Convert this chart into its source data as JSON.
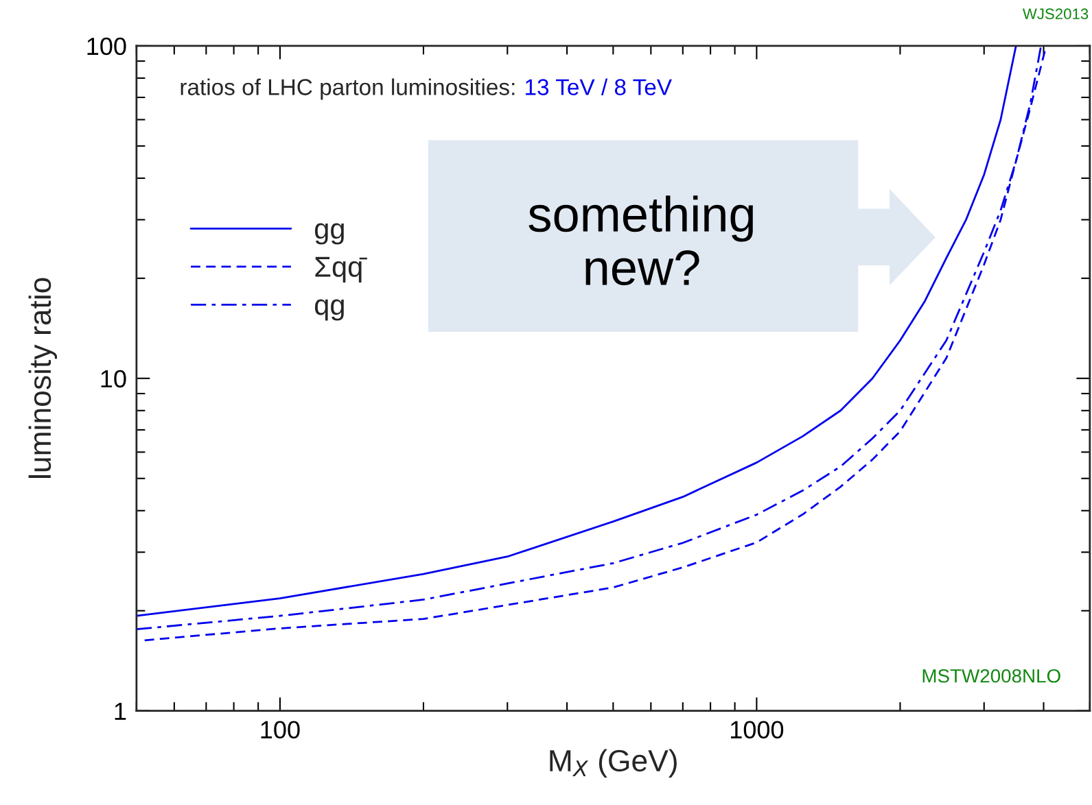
{
  "chart_data": {
    "type": "line",
    "title": "ratios of LHC parton luminosities:",
    "subtitle": "13 TeV / 8 TeV",
    "xlabel": "M$_{X}$ (GeV)",
    "ylabel": "luminosity ratio",
    "annotations": [
      "MSTW2008NLO",
      "WJS2013",
      "something\nnew?"
    ],
    "log": "xy",
    "grid": false,
    "legend": "upper left",
    "xlim": [
      50,
      5000
    ],
    "ylim": [
      1,
      100
    ],
    "xticks": [
      {
        "value": 50,
        "label": null
      },
      {
        "value": 60,
        "label": null
      },
      {
        "value": 70,
        "label": null
      },
      {
        "value": 80,
        "label": null
      },
      {
        "value": 90,
        "label": null
      },
      100,
      {
        "value": 200,
        "label": null
      },
      {
        "value": 300,
        "label": null
      },
      {
        "value": 400,
        "label": null
      },
      {
        "value": 500,
        "label": null
      },
      {
        "value": 600,
        "label": null
      },
      {
        "value": 700,
        "label": null
      },
      {
        "value": 800,
        "label": null
      },
      {
        "value": 900,
        "label": null
      },
      1000,
      {
        "value": 2000,
        "label": null
      },
      {
        "value": 3000,
        "label": null
      },
      {
        "value": 4000,
        "label": null
      },
      {
        "value": 5000,
        "label": null
      }
    ],
    "yticks": [
      1,
      {
        "value": 2,
        "label": null
      },
      {
        "value": 3,
        "label": null
      },
      {
        "value": 4,
        "label": null
      },
      {
        "value": 5,
        "label": null
      },
      {
        "value": 6,
        "label": null
      },
      {
        "value": 7,
        "label": null
      },
      {
        "value": 8,
        "label": null
      },
      {
        "value": 9,
        "label": null
      },
      10,
      {
        "value": 20,
        "label": null
      },
      {
        "value": 30,
        "label": null
      },
      {
        "value": 40,
        "label": null
      },
      {
        "value": 50,
        "label": null
      },
      {
        "value": 60,
        "label": null
      },
      {
        "value": 70,
        "label": null
      },
      {
        "value": 80,
        "label": null
      },
      {
        "value": 90,
        "label": null
      },
      100
    ],
    "series": [
      {
        "name": "gg",
        "color": "#0000ee",
        "line_style": "solid",
        "x": [
          50,
          100,
          200,
          300,
          500,
          700,
          1000,
          1250,
          1500,
          1750,
          2000,
          2250,
          2500,
          2750,
          3000,
          3250,
          3500
        ],
        "values": [
          1.93,
          2.18,
          2.58,
          2.91,
          3.71,
          4.4,
          5.58,
          6.7,
          8.0,
          10.0,
          13.0,
          17.0,
          23,
          30,
          41,
          60,
          100
        ]
      },
      {
        "name": "Σqq̄",
        "color": "#0000ee",
        "line_style": "dashed",
        "x": [
          52,
          100,
          200,
          500,
          700,
          1000,
          1250,
          1500,
          1750,
          2000,
          2500,
          3000,
          3250,
          3500,
          3750,
          4050
        ],
        "values": [
          1.63,
          1.77,
          1.89,
          2.35,
          2.7,
          3.21,
          3.9,
          4.72,
          5.7,
          6.93,
          11.5,
          22,
          30,
          45,
          65,
          100
        ]
      },
      {
        "name": "qg",
        "color": "#0000ee",
        "line_style": "dashdot",
        "x": [
          50,
          100,
          200,
          500,
          700,
          1000,
          1250,
          1500,
          1750,
          2000,
          2500,
          3000,
          3250,
          3500,
          3750,
          3950
        ],
        "values": [
          1.76,
          1.93,
          2.16,
          2.78,
          3.2,
          3.89,
          4.6,
          5.43,
          6.6,
          8.0,
          13.0,
          24,
          32,
          45,
          67,
          100
        ]
      }
    ]
  }
}
